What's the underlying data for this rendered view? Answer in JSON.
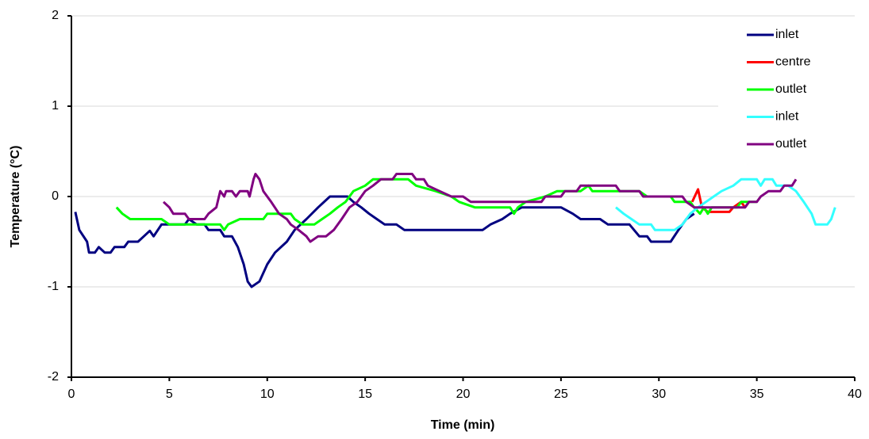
{
  "chart_data": {
    "type": "line",
    "xlabel": "Time (min)",
    "ylabel": "Temperature (°C)",
    "xlim": [
      0,
      40
    ],
    "xticks": [
      0,
      5,
      10,
      15,
      20,
      25,
      30,
      35,
      40
    ],
    "ylim": [
      -2,
      2
    ],
    "yticks": [
      -2,
      -1,
      0,
      1,
      2
    ],
    "grid": true,
    "legend": "upper right",
    "series": [
      {
        "name": "inlet",
        "color": "#000080",
        "x": [
          0.2,
          0.4,
          0.8,
          0.9,
          1.2,
          1.4,
          1.7,
          2.0,
          2.2,
          2.7,
          2.9,
          3.4,
          3.7,
          4.0,
          4.2,
          4.6,
          5.8,
          6.0,
          6.4,
          6.8,
          7.0,
          7.6,
          7.8,
          8.2,
          8.5,
          8.8,
          9.0,
          9.2,
          9.6,
          10.0,
          10.4,
          11.0,
          11.4,
          12.0,
          12.6,
          13.2,
          13.7,
          14.1,
          14.4,
          14.8,
          15.2,
          15.6,
          16.0,
          16.6,
          17.0,
          21.0,
          21.4,
          22.0,
          22.4,
          23.0,
          25.0,
          25.6,
          26.0,
          27.0,
          27.4,
          28.5,
          29.0,
          29.4,
          29.6,
          30.6,
          31.0,
          31.4,
          31.8
        ],
        "values": [
          -0.17,
          -0.37,
          -0.5,
          -0.62,
          -0.62,
          -0.56,
          -0.62,
          -0.62,
          -0.56,
          -0.56,
          -0.5,
          -0.5,
          -0.44,
          -0.38,
          -0.44,
          -0.31,
          -0.31,
          -0.25,
          -0.31,
          -0.31,
          -0.37,
          -0.37,
          -0.44,
          -0.44,
          -0.56,
          -0.75,
          -0.94,
          -1.0,
          -0.94,
          -0.75,
          -0.62,
          -0.5,
          -0.37,
          -0.25,
          -0.12,
          0.0,
          0.0,
          0.0,
          -0.06,
          -0.12,
          -0.19,
          -0.25,
          -0.31,
          -0.31,
          -0.37,
          -0.37,
          -0.31,
          -0.25,
          -0.19,
          -0.12,
          -0.12,
          -0.19,
          -0.25,
          -0.25,
          -0.31,
          -0.31,
          -0.44,
          -0.44,
          -0.5,
          -0.5,
          -0.37,
          -0.25,
          -0.19
        ]
      },
      {
        "name": "centre",
        "color": "#ff0000",
        "x": [
          31.7,
          32.0,
          32.2,
          32.5,
          33.6,
          33.8,
          34.2,
          34.4,
          34.6
        ],
        "values": [
          -0.06,
          0.08,
          -0.12,
          -0.17,
          -0.17,
          -0.12,
          -0.06,
          -0.12,
          -0.06
        ]
      },
      {
        "name": "outlet",
        "color": "#00ff00",
        "x": [
          2.3,
          2.6,
          3.0,
          4.6,
          5.0,
          7.6,
          7.8,
          8.0,
          8.6,
          9.8,
          10.0,
          11.2,
          11.4,
          11.8,
          12.4,
          12.8,
          13.2,
          13.6,
          14.0,
          14.4,
          15.0,
          15.4,
          17.2,
          17.6,
          18.6,
          19.4,
          19.8,
          20.6,
          22.4,
          22.6,
          22.8,
          23.2,
          24.2,
          24.8,
          26.0,
          26.4,
          26.6,
          29.0,
          29.4,
          30.6,
          30.8,
          31.6,
          31.8,
          32.1,
          32.3,
          32.5,
          32.7,
          33.0,
          34.0,
          34.2,
          35.0
        ],
        "values": [
          -0.12,
          -0.19,
          -0.25,
          -0.25,
          -0.31,
          -0.31,
          -0.37,
          -0.31,
          -0.25,
          -0.25,
          -0.19,
          -0.19,
          -0.25,
          -0.31,
          -0.31,
          -0.25,
          -0.19,
          -0.12,
          -0.06,
          0.06,
          0.12,
          0.19,
          0.19,
          0.12,
          0.06,
          0.0,
          -0.06,
          -0.12,
          -0.12,
          -0.19,
          -0.12,
          -0.06,
          0.0,
          0.06,
          0.06,
          0.12,
          0.06,
          0.06,
          0.0,
          0.0,
          -0.06,
          -0.06,
          -0.12,
          -0.19,
          -0.12,
          -0.19,
          -0.12,
          -0.12,
          -0.12,
          -0.06,
          -0.06
        ]
      },
      {
        "name": "inlet",
        "color": "#33ffff",
        "x": [
          27.8,
          28.2,
          28.6,
          29.0,
          29.6,
          29.8,
          30.8,
          31.2,
          31.6,
          32.0,
          32.4,
          32.8,
          33.2,
          33.8,
          34.2,
          35.0,
          35.2,
          35.4,
          35.8,
          36.0,
          36.6,
          37.0,
          37.4,
          37.8,
          38.0,
          38.6,
          38.8,
          39.0
        ],
        "values": [
          -0.12,
          -0.19,
          -0.25,
          -0.31,
          -0.31,
          -0.37,
          -0.37,
          -0.31,
          -0.19,
          -0.12,
          -0.06,
          0.0,
          0.06,
          0.12,
          0.19,
          0.19,
          0.12,
          0.19,
          0.19,
          0.12,
          0.12,
          0.06,
          -0.06,
          -0.19,
          -0.31,
          -0.31,
          -0.25,
          -0.12
        ]
      },
      {
        "name": "outlet",
        "color": "#800080",
        "x": [
          4.7,
          5.0,
          5.2,
          5.8,
          6.0,
          6.8,
          7.0,
          7.4,
          7.6,
          7.8,
          7.9,
          8.2,
          8.4,
          8.6,
          9.0,
          9.1,
          9.3,
          9.4,
          9.6,
          9.8,
          10.2,
          10.6,
          11.0,
          11.2,
          11.6,
          12.0,
          12.2,
          12.6,
          13.0,
          13.4,
          13.8,
          14.2,
          14.6,
          15.0,
          15.4,
          15.8,
          16.4,
          16.6,
          17.4,
          17.6,
          18.0,
          18.2,
          18.8,
          19.4,
          20.0,
          20.4,
          24.0,
          24.2,
          25.0,
          25.2,
          25.8,
          26.0,
          27.8,
          28.0,
          29.0,
          29.2,
          31.2,
          31.4,
          31.8,
          34.4,
          34.6,
          35.0,
          35.2,
          35.6,
          36.2,
          36.4,
          36.8,
          37.0
        ],
        "values": [
          -0.06,
          -0.12,
          -0.19,
          -0.19,
          -0.25,
          -0.25,
          -0.19,
          -0.12,
          0.06,
          0.0,
          0.06,
          0.06,
          0.0,
          0.06,
          0.06,
          0.0,
          0.19,
          0.25,
          0.19,
          0.06,
          -0.06,
          -0.19,
          -0.25,
          -0.31,
          -0.37,
          -0.44,
          -0.5,
          -0.44,
          -0.44,
          -0.37,
          -0.25,
          -0.12,
          -0.06,
          0.06,
          0.12,
          0.19,
          0.19,
          0.25,
          0.25,
          0.19,
          0.19,
          0.12,
          0.06,
          0.0,
          0.0,
          -0.06,
          -0.06,
          0.0,
          0.0,
          0.06,
          0.06,
          0.12,
          0.12,
          0.06,
          0.06,
          0.0,
          0.0,
          -0.06,
          -0.12,
          -0.12,
          -0.06,
          -0.06,
          0.0,
          0.06,
          0.06,
          0.12,
          0.12,
          0.19
        ]
      }
    ]
  }
}
